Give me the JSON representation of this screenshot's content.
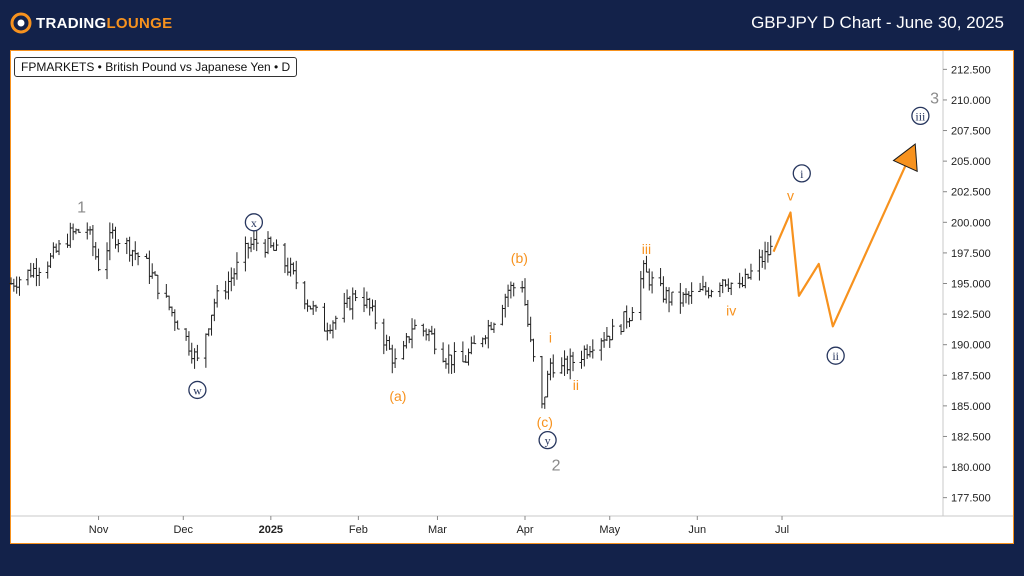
{
  "header": {
    "logo_text_main": "TRADING",
    "logo_text_accent": "LOUNGE",
    "title": "GBPJPY D Chart - June 30, 2025"
  },
  "symbol_label": "FPMARKETS • British Pound vs Japanese Yen • D",
  "colors": {
    "background": "#13224a",
    "accent": "#f7921e",
    "bars": "#222222",
    "navy_label": "#27365e",
    "orange_label": "#f7921e",
    "gray_label": "#8a8a8a"
  },
  "chart_data": {
    "type": "ohlc",
    "title": "GBPJPY D Chart - June 30, 2025",
    "xlabel": "",
    "ylabel": "",
    "ylim": [
      176.0,
      214.0
    ],
    "y_ticks": [
      "212.500",
      "210.000",
      "207.500",
      "205.000",
      "202.500",
      "200.000",
      "197.500",
      "195.000",
      "192.500",
      "190.000",
      "187.500",
      "185.000",
      "182.500",
      "180.000",
      "177.500"
    ],
    "x_ticks": [
      {
        "label": "Nov",
        "date": "2024-11-01",
        "bold": false
      },
      {
        "label": "Dec",
        "date": "2024-12-01",
        "bold": false
      },
      {
        "label": "2025",
        "date": "2025-01-01",
        "bold": true
      },
      {
        "label": "Feb",
        "date": "2025-02-01",
        "bold": false
      },
      {
        "label": "Mar",
        "date": "2025-03-01",
        "bold": false
      },
      {
        "label": "Apr",
        "date": "2025-04-01",
        "bold": false
      },
      {
        "label": "May",
        "date": "2025-05-01",
        "bold": false
      },
      {
        "label": "Jun",
        "date": "2025-06-01",
        "bold": false
      },
      {
        "label": "Jul",
        "date": "2025-07-01",
        "bold": false
      }
    ],
    "x_range": [
      "2024-10-01",
      "2025-08-27"
    ],
    "price_path": [
      [
        "2024-10-01",
        195.0
      ],
      [
        "2024-10-08",
        196.0
      ],
      [
        "2024-10-15",
        197.0
      ],
      [
        "2024-10-22",
        199.0
      ],
      [
        "2024-10-28",
        199.5
      ],
      [
        "2024-11-01",
        196.5
      ],
      [
        "2024-11-06",
        199.0
      ],
      [
        "2024-11-12",
        198.0
      ],
      [
        "2024-11-18",
        196.5
      ],
      [
        "2024-11-25",
        193.5
      ],
      [
        "2024-12-02",
        190.5
      ],
      [
        "2024-12-06",
        188.6
      ],
      [
        "2024-12-12",
        193.5
      ],
      [
        "2024-12-18",
        195.5
      ],
      [
        "2024-12-24",
        198.0
      ],
      [
        "2024-12-28",
        198.5
      ],
      [
        "2025-01-03",
        197.5
      ],
      [
        "2025-01-08",
        196.0
      ],
      [
        "2025-01-14",
        193.5
      ],
      [
        "2025-01-20",
        191.5
      ],
      [
        "2025-01-26",
        192.5
      ],
      [
        "2025-02-01",
        194.5
      ],
      [
        "2025-02-06",
        192.5
      ],
      [
        "2025-02-12",
        189.5
      ],
      [
        "2025-02-15",
        188.0
      ],
      [
        "2025-02-20",
        191.5
      ],
      [
        "2025-02-26",
        191.0
      ],
      [
        "2025-03-04",
        189.0
      ],
      [
        "2025-03-10",
        188.5
      ],
      [
        "2025-03-16",
        190.5
      ],
      [
        "2025-03-22",
        192.5
      ],
      [
        "2025-03-26",
        194.5
      ],
      [
        "2025-03-31",
        195.0
      ],
      [
        "2025-04-03",
        190.0
      ],
      [
        "2025-04-07",
        184.8
      ],
      [
        "2025-04-10",
        188.5
      ],
      [
        "2025-04-14",
        188.0
      ],
      [
        "2025-04-20",
        189.0
      ],
      [
        "2025-04-26",
        190.5
      ],
      [
        "2025-05-02",
        191.0
      ],
      [
        "2025-05-08",
        192.5
      ],
      [
        "2025-05-13",
        196.0
      ],
      [
        "2025-05-18",
        194.5
      ],
      [
        "2025-05-24",
        193.5
      ],
      [
        "2025-05-30",
        194.0
      ],
      [
        "2025-06-05",
        194.5
      ],
      [
        "2025-06-10",
        195.5
      ],
      [
        "2025-06-16",
        194.5
      ],
      [
        "2025-06-22",
        196.5
      ],
      [
        "2025-06-28",
        198.0
      ]
    ],
    "projection": [
      [
        "2025-06-28",
        197.6
      ],
      [
        "2025-07-04",
        200.8
      ],
      [
        "2025-07-07",
        194.0
      ],
      [
        "2025-07-14",
        196.6
      ],
      [
        "2025-07-19",
        191.5
      ],
      [
        "2025-08-16",
        205.8
      ]
    ],
    "wave_labels": [
      {
        "text": "1",
        "date": "2024-10-26",
        "price": 201.3,
        "style": "gray"
      },
      {
        "text": "w",
        "date": "2024-12-06",
        "price": 186.3,
        "style": "navy_circle"
      },
      {
        "text": "x",
        "date": "2024-12-26",
        "price": 200.0,
        "style": "navy_circle"
      },
      {
        "text": "(a)",
        "date": "2025-02-15",
        "price": 185.8,
        "style": "orange"
      },
      {
        "text": "(b)",
        "date": "2025-03-30",
        "price": 197.1,
        "style": "orange"
      },
      {
        "text": "i",
        "date": "2025-04-10",
        "price": 190.6,
        "style": "orange"
      },
      {
        "text": "(c)",
        "date": "2025-04-08",
        "price": 183.7,
        "style": "orange"
      },
      {
        "text": "y",
        "date": "2025-04-09",
        "price": 182.2,
        "style": "navy_circle"
      },
      {
        "text": "2",
        "date": "2025-04-12",
        "price": 180.2,
        "style": "gray"
      },
      {
        "text": "ii",
        "date": "2025-04-19",
        "price": 186.7,
        "style": "orange"
      },
      {
        "text": "iii",
        "date": "2025-05-14",
        "price": 197.8,
        "style": "orange"
      },
      {
        "text": "iv",
        "date": "2025-06-13",
        "price": 192.8,
        "style": "orange"
      },
      {
        "text": "v",
        "date": "2025-07-04",
        "price": 202.2,
        "style": "orange"
      },
      {
        "text": "i",
        "date": "2025-07-08",
        "price": 204.0,
        "style": "navy_circle"
      },
      {
        "text": "ii",
        "date": "2025-07-20",
        "price": 189.1,
        "style": "navy_circle"
      },
      {
        "text": "iii",
        "date": "2025-08-19",
        "price": 208.7,
        "style": "navy_circle"
      },
      {
        "text": "3",
        "date": "2025-08-24",
        "price": 210.2,
        "style": "gray"
      }
    ]
  }
}
